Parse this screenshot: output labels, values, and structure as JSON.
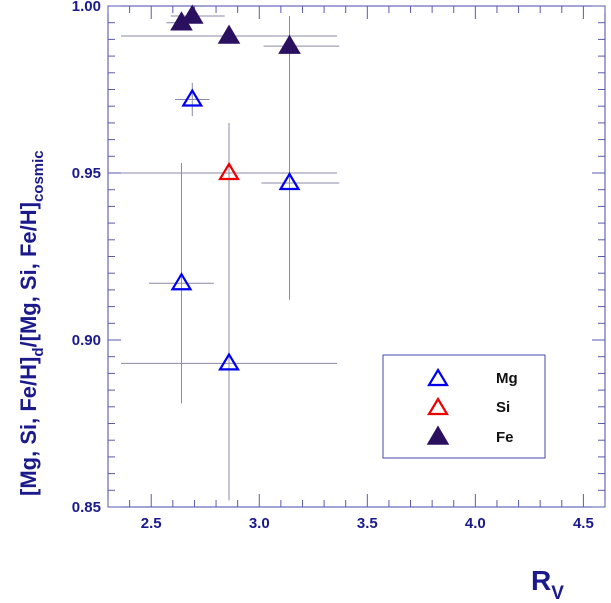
{
  "chart_data": {
    "type": "scatter",
    "xlabel": {
      "main": "R",
      "sub": "V"
    },
    "ylabel": {
      "main": "[Mg, Si, Fe/H]",
      "sub1": "d",
      "mid": "/[Mg, Si, Fe/H]",
      "sub2": "cosmic"
    },
    "xlim": [
      2.3,
      4.6
    ],
    "ylim": [
      0.85,
      1.0
    ],
    "x_ticks": [
      "2.5",
      "3.0",
      "3.5",
      "4.0",
      "4.5"
    ],
    "y_ticks": [
      "0.85",
      "0.90",
      "0.95",
      "1.00"
    ],
    "grid": false,
    "legend_position": "bottom-right",
    "series": [
      {
        "name": "Mg",
        "marker": "open-triangle",
        "color": "#0000ee",
        "points": [
          {
            "x": 2.69,
            "y": 0.972,
            "xerr": [
              0.08,
              0.08
            ],
            "yerr": [
              0.005,
              0.005
            ]
          },
          {
            "x": 3.14,
            "y": 0.947,
            "xerr": [
              0.13,
              0.23
            ],
            "yerr": [
              0.035,
              0.035
            ]
          },
          {
            "x": 2.64,
            "y": 0.917,
            "xerr": [
              0.15,
              0.15
            ],
            "yerr": [
              0.036,
              0.036
            ]
          },
          {
            "x": 2.86,
            "y": 0.893,
            "xerr": [
              0.5,
              0.5
            ],
            "yerr": [
              0.041,
              0.041
            ]
          }
        ]
      },
      {
        "name": "Si",
        "marker": "open-triangle",
        "color": "#ee0000",
        "points": [
          {
            "x": 2.86,
            "y": 0.95,
            "xerr": [
              0.5,
              0.5
            ],
            "yerr": [
              0.016,
              0.015
            ]
          }
        ]
      },
      {
        "name": "Fe",
        "marker": "filled-triangle",
        "color": "#2b1060",
        "points": [
          {
            "x": 2.64,
            "y": 0.995,
            "xerr": [
              0.07,
              0.07
            ],
            "yerr": [
              0.002,
              0.002
            ]
          },
          {
            "x": 2.69,
            "y": 0.997,
            "xerr": [
              0.1,
              0.15
            ],
            "yerr": [
              0.002,
              0.002
            ]
          },
          {
            "x": 2.86,
            "y": 0.991,
            "xerr": [
              0.5,
              0.5
            ],
            "yerr": [
              0.0,
              0.0
            ]
          },
          {
            "x": 3.14,
            "y": 0.988,
            "xerr": [
              0.12,
              0.23
            ],
            "yerr": [
              0.009,
              0.009
            ]
          }
        ]
      }
    ]
  }
}
